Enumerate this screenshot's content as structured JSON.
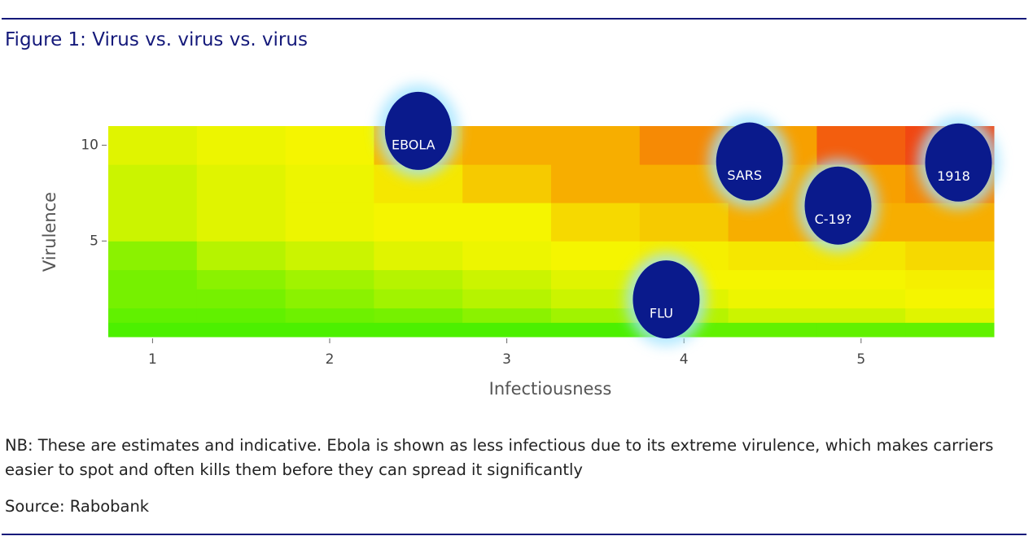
{
  "chart_data": {
    "type": "heatmap",
    "title": "Figure 1: Virus vs. virus vs. virus",
    "x_label": "Infectiousness",
    "y_label": "Virulence",
    "xlim": [
      0.75,
      5.75
    ],
    "ylim": [
      0,
      11
    ],
    "xticks": [
      1,
      2,
      3,
      4,
      5
    ],
    "yticks": [
      5,
      10
    ],
    "x_edges": [
      0.75,
      1.25,
      1.75,
      2.25,
      2.75,
      3.25,
      3.75,
      4.25,
      4.75,
      5.25,
      5.75
    ],
    "y_edges": [
      0,
      0.75,
      1.5,
      2.5,
      3.5,
      5,
      7,
      9,
      11
    ],
    "zlim": [
      0,
      10
    ],
    "colorscale": [
      [
        0,
        "#4cf000"
      ],
      [
        0.4,
        "#f5f500"
      ],
      [
        0.7,
        "#f7a000"
      ],
      [
        1,
        "#ee1b1b"
      ]
    ],
    "z": [
      [
        0,
        0,
        0,
        0,
        0,
        0,
        0.5,
        0.5,
        0.5,
        0.5
      ],
      [
        0.5,
        0.5,
        0.8,
        1,
        1.5,
        2,
        2.5,
        3,
        3,
        3.5
      ],
      [
        1,
        1,
        1.5,
        2,
        2.5,
        3,
        3.5,
        3.8,
        3.8,
        4
      ],
      [
        1,
        1.5,
        2,
        2.5,
        3,
        3.5,
        4,
        4,
        4,
        4.2
      ],
      [
        1.5,
        2.5,
        3,
        3.5,
        3.8,
        4,
        4.2,
        4.5,
        4.5,
        5
      ],
      [
        3,
        3.5,
        3.8,
        4,
        4,
        5,
        5.5,
        6.5,
        6.5,
        6.5
      ],
      [
        3,
        3.5,
        3.8,
        4.5,
        5.5,
        6.5,
        6.5,
        6.5,
        7,
        7.5
      ],
      [
        3.5,
        3.8,
        4,
        6,
        6.5,
        6.5,
        7.5,
        7,
        8.5,
        9
      ]
    ],
    "bubbles": {
      "color": "#0a1a8c",
      "glow": "#9fe3ff",
      "labels": [
        "EBOLA",
        "SARS",
        "C-19?",
        "1918",
        "FLU"
      ],
      "x": [
        2.5,
        4.37,
        4.87,
        5.55,
        3.9
      ],
      "y": [
        10.75,
        9.15,
        6.85,
        9.1,
        1.95
      ]
    },
    "note": "NB: These are estimates and indicative. Ebola is shown as less infectious due to its extreme virulence, which makes carriers easier to spot and often kills them before they can spread it significantly",
    "source": "Source: Rabobank"
  }
}
